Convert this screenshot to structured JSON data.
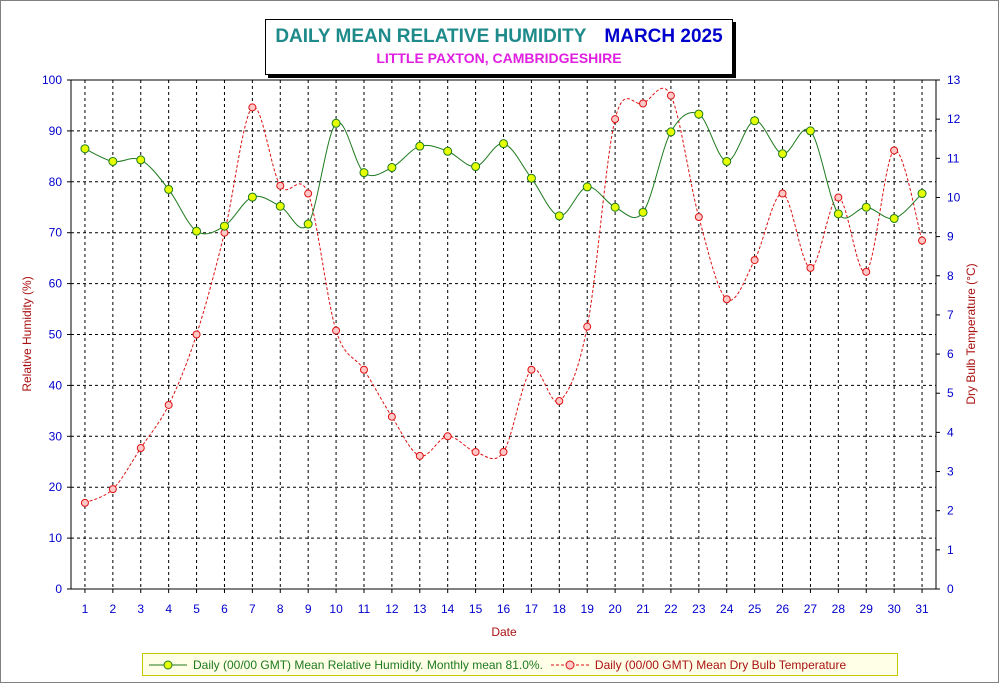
{
  "header": {
    "title": "DAILY MEAN RELATIVE HUMIDITY",
    "month": "MARCH 2025",
    "subtitle": "LITTLE PAXTON, CAMBRIDGESHIRE"
  },
  "colors": {
    "humidity_line": "#1e7a1e",
    "humidity_marker": "#e6ff00",
    "temperature_line": "#dd1111",
    "temperature_marker": "#ffc8c8",
    "tick_labels": "#0000cc",
    "axis_titles": "#aa1111",
    "title_main": "#1e8a8a",
    "title_month": "#0000cc",
    "subtitle": "#e020e0",
    "legend_background": "#ffffe8",
    "legend_border": "#c8c800"
  },
  "chart_data": {
    "type": "line",
    "x": [
      1,
      2,
      3,
      4,
      5,
      6,
      7,
      8,
      9,
      10,
      11,
      12,
      13,
      14,
      15,
      16,
      17,
      18,
      19,
      20,
      21,
      22,
      23,
      24,
      25,
      26,
      27,
      28,
      29,
      30,
      31
    ],
    "xlabel": "Date",
    "ylabel": "Relative Humidity (%)",
    "y2label": "Dry Bulb Temperature (°C)",
    "ylim": [
      0,
      100
    ],
    "y2lim": [
      0,
      13
    ],
    "yticks": [
      0,
      10,
      20,
      30,
      40,
      50,
      60,
      70,
      80,
      90,
      100
    ],
    "y2ticks": [
      0,
      1,
      2,
      3,
      4,
      5,
      6,
      7,
      8,
      9,
      10,
      11,
      12,
      13
    ],
    "grid": true,
    "legend_position": "bottom",
    "series": [
      {
        "name": "Daily (00/00 GMT) Mean Relative Humidity. Monthly mean 81.0%.",
        "axis": "left",
        "values": [
          86.5,
          84.0,
          84.3,
          78.5,
          70.3,
          71.3,
          77.0,
          75.2,
          71.7,
          91.5,
          81.8,
          82.8,
          87.0,
          86.0,
          83.0,
          87.5,
          80.7,
          73.3,
          79.0,
          75.0,
          74.0,
          89.8,
          93.3,
          84.0,
          92.0,
          85.5,
          90.0,
          73.7,
          75.0,
          72.8,
          77.7
        ]
      },
      {
        "name": "Daily (00/00 GMT) Mean Dry Bulb Temperature",
        "axis": "right",
        "values": [
          2.2,
          2.55,
          3.6,
          4.7,
          6.5,
          9.1,
          12.3,
          10.3,
          10.1,
          6.6,
          5.6,
          4.4,
          3.4,
          3.9,
          3.5,
          3.5,
          5.6,
          4.8,
          6.7,
          12.0,
          12.4,
          12.6,
          9.5,
          7.4,
          8.4,
          10.1,
          8.2,
          10.0,
          8.1,
          11.2,
          8.9
        ]
      }
    ]
  }
}
